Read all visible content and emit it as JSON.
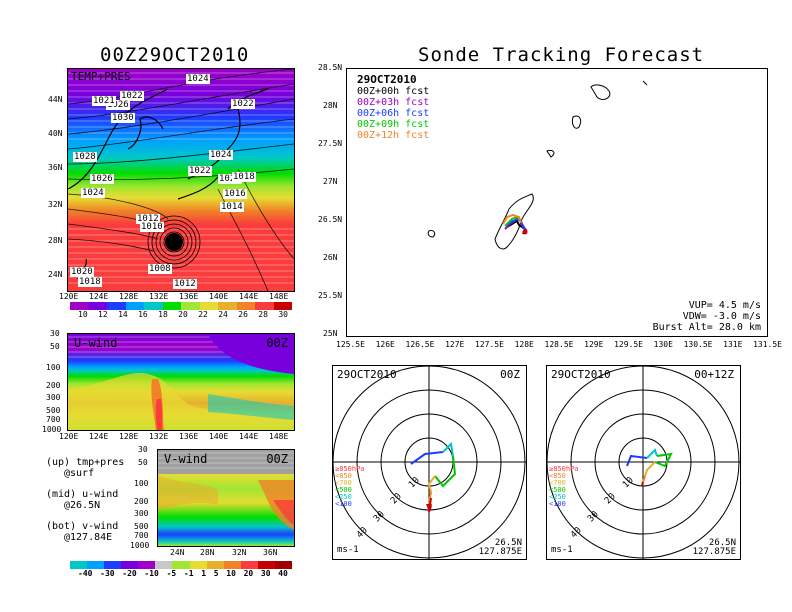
{
  "left_title": "00Z29OCT2010",
  "right_title": "Sonde Tracking Forecast",
  "temp_map": {
    "label": "TEMP+PRES",
    "lat_labels": [
      "44N",
      "40N",
      "36N",
      "32N",
      "28N",
      "24N"
    ],
    "lon_labels": [
      "120E",
      "124E",
      "128E",
      "132E",
      "136E",
      "140E",
      "144E",
      "148E"
    ],
    "isobars": [
      "1024",
      "1022",
      "1022",
      "1026",
      "1021",
      "1030",
      "1028",
      "1026",
      "1024",
      "1024",
      "1022",
      "1020",
      "1018",
      "1016",
      "1014",
      "1012",
      "1010",
      "1008",
      "1012",
      "1020",
      "1018"
    ],
    "colorbar_labels": [
      "10",
      "12",
      "14",
      "16",
      "18",
      "20",
      "22",
      "24",
      "26",
      "28",
      "30"
    ],
    "colorbar_colors": [
      "#a000c8",
      "#7800dc",
      "#1e3cff",
      "#00a0ff",
      "#00c8c8",
      "#00dc00",
      "#a0e632",
      "#e6dc32",
      "#e6af2d",
      "#f08228",
      "#fa3c3c",
      "#c80000"
    ]
  },
  "uwind": {
    "label": "U-wind",
    "time": "00Z",
    "p_labels": [
      "30",
      "50",
      "100",
      "200",
      "300",
      "500",
      "700",
      "1000"
    ],
    "lon_labels": [
      "120E",
      "124E",
      "128E",
      "132E",
      "136E",
      "140E",
      "144E",
      "148E"
    ]
  },
  "vwind": {
    "label": "V-wind",
    "time": "00Z",
    "p_labels": [
      "30",
      "50",
      "100",
      "200",
      "300",
      "500",
      "700",
      "1000"
    ],
    "lat_labels": [
      "24N",
      "28N",
      "32N",
      "36N"
    ]
  },
  "legend_notes": [
    {
      "title": "(up) tmp+pres",
      "sub": "@surf"
    },
    {
      "title": "(mid) u-wind",
      "sub": "@26.5N"
    },
    {
      "title": "(bot) v-wind",
      "sub": "@127.84E"
    }
  ],
  "wind_colorbar": {
    "labels": [
      "-40",
      "-30",
      "-20",
      "-10",
      "-5",
      "-1",
      "1",
      "5",
      "10",
      "20",
      "30",
      "40"
    ],
    "colors": [
      "#00c8c8",
      "#00a0ff",
      "#1e3cff",
      "#7800dc",
      "#a000c8",
      "#c8c8c8",
      "#a0e632",
      "#e6dc32",
      "#e6af2d",
      "#f08228",
      "#fa3c3c",
      "#c80000",
      "#a00000"
    ]
  },
  "track_map": {
    "date": "29OCT2010",
    "legend": [
      {
        "text": "00Z+00h  fcst",
        "color": "#000000"
      },
      {
        "text": "00Z+03h  fcst",
        "color": "#a000c8"
      },
      {
        "text": "00Z+06h  fcst",
        "color": "#1e3cff"
      },
      {
        "text": "00Z+09h  fcst",
        "color": "#00c800"
      },
      {
        "text": "00Z+12h  fcst",
        "color": "#f08228"
      }
    ],
    "lat_labels": [
      "28.5N",
      "28N",
      "27.5N",
      "27N",
      "26.5N",
      "26N",
      "25.5N",
      "25N"
    ],
    "lon_labels": [
      "125.5E",
      "126E",
      "126.5E",
      "127E",
      "127.5E",
      "128E",
      "128.5E",
      "129E",
      "129.5E",
      "130E",
      "130.5E",
      "131E",
      "131.5E"
    ],
    "vup": "VUP=  4.5  m/s",
    "vdw": "VDW= -3.0  m/s",
    "burst": "Burst Alt=  28.0  km"
  },
  "polar_left": {
    "date": "29OCT2010",
    "time": "00Z",
    "ring_labels": [
      "10",
      "20",
      "30",
      "40"
    ],
    "levels": [
      {
        "text": "≥850hPa",
        "color": "#fa3c3c"
      },
      {
        "text": "<850",
        "color": "#f08228"
      },
      {
        "text": "<700",
        "color": "#e6af2d"
      },
      {
        "text": "<500",
        "color": "#00c800"
      },
      {
        "text": "<250",
        "color": "#00c8c8"
      },
      {
        "text": "<100",
        "color": "#1e3cff"
      }
    ],
    "units": "ms-1",
    "loc1": "26.5N",
    "loc2": "127.875E"
  },
  "polar_right": {
    "date": "29OCT2010",
    "time": "00+12Z",
    "ring_labels": [
      "10",
      "20",
      "30",
      "40"
    ],
    "levels": [
      {
        "text": "≥850hPa",
        "color": "#fa3c3c"
      },
      {
        "text": "<850",
        "color": "#f08228"
      },
      {
        "text": "<700",
        "color": "#e6af2d"
      },
      {
        "text": "<500",
        "color": "#00c800"
      },
      {
        "text": "<250",
        "color": "#00c8c8"
      },
      {
        "text": "<100",
        "color": "#1e3cff"
      }
    ],
    "units": "ms-1",
    "loc1": "26.5N",
    "loc2": "127.875E"
  }
}
